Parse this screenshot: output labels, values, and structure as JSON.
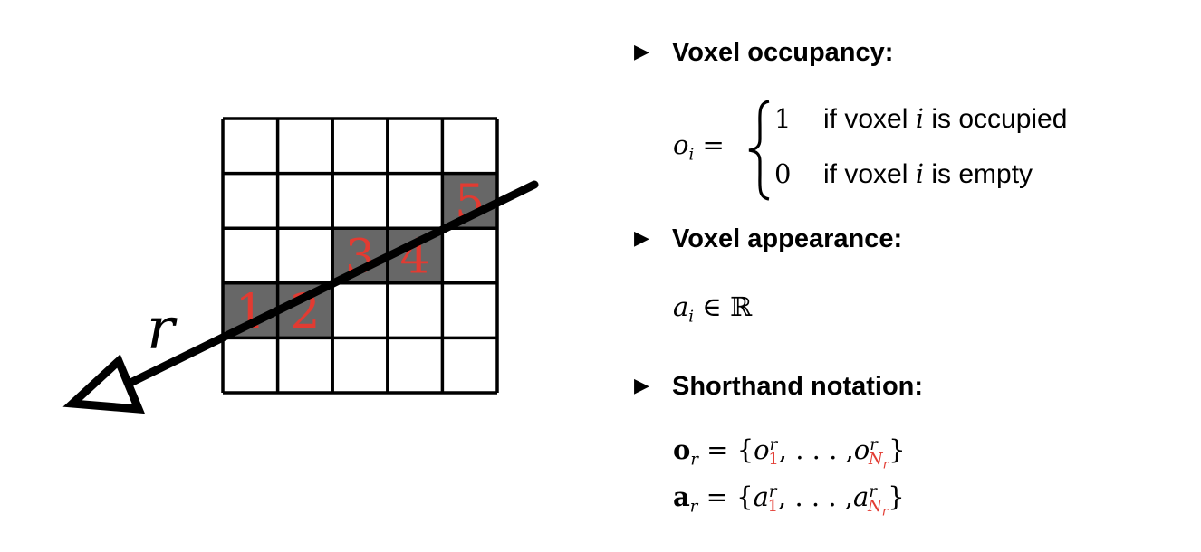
{
  "grid": {
    "rows": 5,
    "cols": 5,
    "highlighted_cells": [
      {
        "row": 3,
        "col": 0,
        "label": "1"
      },
      {
        "row": 3,
        "col": 1,
        "label": "2"
      },
      {
        "row": 2,
        "col": 2,
        "label": "3"
      },
      {
        "row": 2,
        "col": 3,
        "label": "4"
      },
      {
        "row": 1,
        "col": 4,
        "label": "5"
      }
    ]
  },
  "ray": {
    "label": "r"
  },
  "colors": {
    "cell_fill": "#676767",
    "label_red": "#e23b32",
    "line": "#000000"
  },
  "bullets": [
    {
      "label": "Voxel occupancy:"
    },
    {
      "label": "Voxel appearance:"
    },
    {
      "label": "Shorthand notation:"
    }
  ],
  "occupancy": {
    "lhs_var": "o",
    "lhs_sub": "i",
    "equals": "=",
    "cases": [
      {
        "value": "1",
        "text_pre": "if voxel ",
        "var": "i",
        "text_post": " is occupied"
      },
      {
        "value": "0",
        "text_pre": "if voxel ",
        "var": "i",
        "text_post": " is empty"
      }
    ]
  },
  "appearance": {
    "var": "a",
    "sub": "i",
    "rel": "∈",
    "set": "ℝ"
  },
  "shorthand": [
    {
      "bold": "o",
      "var": "o"
    },
    {
      "bold": "a",
      "var": "a"
    }
  ],
  "shorthand_parts": {
    "sub_r": "r",
    "sup_r": "r",
    "eq": "=",
    "open": "{",
    "first_index": "1",
    "sep": ", . . . ,",
    "last_index": "N",
    "last_index_sub": "r",
    "close": "}"
  }
}
